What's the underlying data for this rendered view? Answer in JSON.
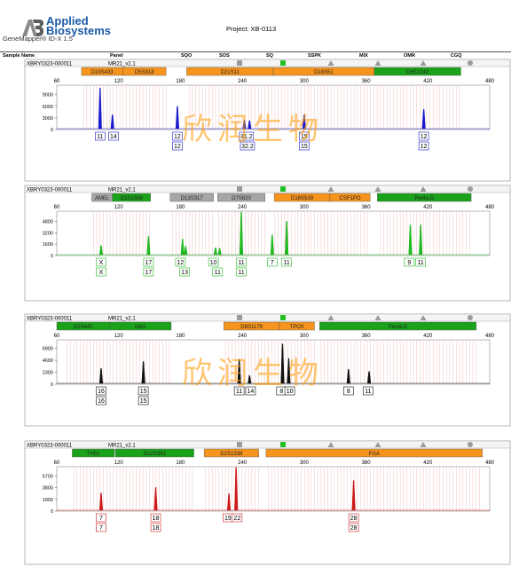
{
  "header": {
    "brand_line1": "Applied",
    "brand_line2": "Biosystems",
    "software": "GeneMapper® ID-X  1.5",
    "project": "Project: XB-0113"
  },
  "columns": [
    "Sample Name",
    "Panel",
    "SQO",
    "SOS",
    "SQ",
    "SSPK",
    "MIX",
    "OMR",
    "CGQ"
  ],
  "watermark": "欣润生物",
  "colors": {
    "blue": "#1a1acc",
    "green": "#1fb81f",
    "black": "#111111",
    "red": "#cc1a1a",
    "marker_orange": "#f7941d",
    "marker_green": "#1aa31a",
    "marker_gray": "#a6a6a6"
  },
  "panels": [
    {
      "sample": "XBRY0323-000011",
      "panel": "MR21_v2.1",
      "dye": "blue",
      "indicators": [
        {
          "shape": "square",
          "color": "gray"
        },
        {
          "shape": "square",
          "color": "green"
        },
        {
          "shape": "triangle",
          "color": "gray"
        },
        {
          "shape": "triangle",
          "color": "gray"
        },
        {
          "shape": "triangle",
          "color": "gray"
        },
        {
          "shape": "circle",
          "color": "gray"
        }
      ],
      "markers": [
        {
          "name": "D19S433",
          "start": 84,
          "end": 124,
          "color": "orange"
        },
        {
          "name": "D5S818",
          "start": 124,
          "end": 166,
          "color": "orange"
        },
        {
          "name": "D21S11",
          "start": 186,
          "end": 270,
          "color": "orange"
        },
        {
          "name": "D18S51",
          "start": 270,
          "end": 368,
          "color": "orange"
        },
        {
          "name": "D6S1043",
          "start": 368,
          "end": 452,
          "color": "green"
        }
      ],
      "x_ticks": [
        60,
        120,
        180,
        240,
        300,
        360,
        420,
        480
      ],
      "y_ticks": [
        0,
        3000,
        6000,
        9000
      ],
      "y_max": 11000,
      "peaks": [
        {
          "x": 102,
          "h": 10500
        },
        {
          "x": 114,
          "h": 3600
        },
        {
          "x": 177,
          "h": 5800
        },
        {
          "x": 242,
          "h": 2200
        },
        {
          "x": 247,
          "h": 2100
        },
        {
          "x": 300,
          "h": 3600
        },
        {
          "x": 416,
          "h": 5000
        }
      ],
      "calls": [
        {
          "x": 102,
          "row": 1,
          "label": "11"
        },
        {
          "x": 115,
          "row": 1,
          "label": "14"
        },
        {
          "x": 177,
          "row": 1,
          "label": "12"
        },
        {
          "x": 177,
          "row": 2,
          "label": "12"
        },
        {
          "x": 244,
          "row": 1,
          "label": "31.2"
        },
        {
          "x": 245,
          "row": 2,
          "label": "32.2"
        },
        {
          "x": 300,
          "row": 1,
          "label": "15"
        },
        {
          "x": 300,
          "row": 2,
          "label": "15"
        },
        {
          "x": 416,
          "row": 1,
          "label": "12"
        },
        {
          "x": 416,
          "row": 2,
          "label": "12"
        }
      ]
    },
    {
      "sample": "XBRY0323-000011",
      "panel": "MR21_v2.1",
      "dye": "green",
      "indicators": [
        {
          "shape": "square",
          "color": "gray"
        },
        {
          "shape": "square",
          "color": "green"
        },
        {
          "shape": "triangle",
          "color": "gray"
        },
        {
          "shape": "triangle",
          "color": "gray"
        },
        {
          "shape": "triangle",
          "color": "gray"
        },
        {
          "shape": "circle",
          "color": "gray"
        }
      ],
      "markers": [
        {
          "name": "AMEL",
          "start": 94,
          "end": 114,
          "color": "gray"
        },
        {
          "name": "D3S1358",
          "start": 114,
          "end": 151,
          "color": "green"
        },
        {
          "name": "D13S317",
          "start": 170,
          "end": 212,
          "color": "gray"
        },
        {
          "name": "D7S820",
          "start": 216,
          "end": 262,
          "color": "gray"
        },
        {
          "name": "D16S539",
          "start": 271,
          "end": 325,
          "color": "orange"
        },
        {
          "name": "CSF1PO",
          "start": 325,
          "end": 364,
          "color": "orange"
        },
        {
          "name": "Penta D",
          "start": 371,
          "end": 462,
          "color": "green"
        }
      ],
      "x_ticks": [
        60,
        120,
        180,
        240,
        300,
        360,
        420,
        480
      ],
      "y_ticks": [
        0,
        1600,
        3200,
        4800
      ],
      "y_max": 6000,
      "peaks": [
        {
          "x": 103,
          "h": 1300
        },
        {
          "x": 149,
          "h": 2600
        },
        {
          "x": 182,
          "h": 2200
        },
        {
          "x": 185,
          "h": 1200
        },
        {
          "x": 214,
          "h": 1000
        },
        {
          "x": 218,
          "h": 900
        },
        {
          "x": 239,
          "h": 6000
        },
        {
          "x": 269,
          "h": 2800
        },
        {
          "x": 283,
          "h": 4700
        },
        {
          "x": 403,
          "h": 4200
        },
        {
          "x": 413,
          "h": 4200
        }
      ],
      "calls": [
        {
          "x": 103,
          "row": 1,
          "label": "X"
        },
        {
          "x": 103,
          "row": 2,
          "label": "X"
        },
        {
          "x": 149,
          "row": 1,
          "label": "17"
        },
        {
          "x": 149,
          "row": 2,
          "label": "17"
        },
        {
          "x": 180,
          "row": 1,
          "label": "12"
        },
        {
          "x": 184,
          "row": 2,
          "label": "13"
        },
        {
          "x": 212,
          "row": 1,
          "label": "10"
        },
        {
          "x": 216,
          "row": 2,
          "label": "11"
        },
        {
          "x": 239,
          "row": 1,
          "label": "11"
        },
        {
          "x": 239,
          "row": 2,
          "label": "11"
        },
        {
          "x": 269,
          "row": 1,
          "label": "7"
        },
        {
          "x": 283,
          "row": 1,
          "label": "11"
        },
        {
          "x": 402,
          "row": 1,
          "label": "9"
        },
        {
          "x": 413,
          "row": 1,
          "label": "11"
        }
      ]
    },
    {
      "sample": "XBRY0323-000011",
      "panel": "MR21_v2.1",
      "dye": "black",
      "indicators": [
        {
          "shape": "square",
          "color": "gray"
        },
        {
          "shape": "square",
          "color": "green"
        },
        {
          "shape": "triangle",
          "color": "gray"
        },
        {
          "shape": "triangle",
          "color": "gray"
        },
        {
          "shape": "triangle",
          "color": "gray"
        },
        {
          "shape": "circle",
          "color": "gray"
        }
      ],
      "markers": [
        {
          "name": "D2S441",
          "start": 60,
          "end": 111,
          "color": "green"
        },
        {
          "name": "vWA",
          "start": 111,
          "end": 171,
          "color": "green"
        },
        {
          "name": "D8S1179",
          "start": 222,
          "end": 276,
          "color": "orange"
        },
        {
          "name": "TPOX",
          "start": 276,
          "end": 310,
          "color": "orange"
        },
        {
          "name": "Penta E",
          "start": 315,
          "end": 467,
          "color": "green"
        }
      ],
      "x_ticks": [
        60,
        120,
        180,
        240,
        300,
        360,
        420,
        480
      ],
      "y_ticks": [
        0,
        2300,
        4600,
        6900
      ],
      "y_max": 8200,
      "peaks": [
        {
          "x": 103,
          "h": 2900
        },
        {
          "x": 144,
          "h": 4200
        },
        {
          "x": 237,
          "h": 4600
        },
        {
          "x": 247,
          "h": 1500
        },
        {
          "x": 279,
          "h": 7600
        },
        {
          "x": 285,
          "h": 4800
        },
        {
          "x": 343,
          "h": 2700
        },
        {
          "x": 363,
          "h": 2300
        }
      ],
      "calls": [
        {
          "x": 103,
          "row": 1,
          "label": "16"
        },
        {
          "x": 103,
          "row": 2,
          "label": "16"
        },
        {
          "x": 144,
          "row": 1,
          "label": "15"
        },
        {
          "x": 144,
          "row": 2,
          "label": "15"
        },
        {
          "x": 237,
          "row": 1,
          "label": "11"
        },
        {
          "x": 248,
          "row": 1,
          "label": "14"
        },
        {
          "x": 278,
          "row": 1,
          "label": "8"
        },
        {
          "x": 286,
          "row": 1,
          "label": "10"
        },
        {
          "x": 343,
          "row": 1,
          "label": "8"
        },
        {
          "x": 362,
          "row": 1,
          "label": "11"
        }
      ]
    },
    {
      "sample": "XBRY0323-000011",
      "panel": "MR21_v2.1",
      "dye": "red",
      "indicators": [
        {
          "shape": "square",
          "color": "gray"
        },
        {
          "shape": "square",
          "color": "green"
        },
        {
          "shape": "triangle",
          "color": "gray"
        },
        {
          "shape": "triangle",
          "color": "gray"
        },
        {
          "shape": "triangle",
          "color": "gray"
        },
        {
          "shape": "circle",
          "color": "gray"
        }
      ],
      "markers": [
        {
          "name": "TH01",
          "start": 75,
          "end": 116,
          "color": "green"
        },
        {
          "name": "D12S391",
          "start": 117,
          "end": 193,
          "color": "green"
        },
        {
          "name": "D2S1338",
          "start": 203,
          "end": 256,
          "color": "orange"
        },
        {
          "name": "FGA",
          "start": 263,
          "end": 473,
          "color": "orange"
        }
      ],
      "x_ticks": [
        60,
        120,
        180,
        240,
        300,
        360,
        420,
        480
      ],
      "y_ticks": [
        0,
        1900,
        3800,
        5700
      ],
      "y_max": 6900,
      "peaks": [
        {
          "x": 103,
          "h": 2800
        },
        {
          "x": 156,
          "h": 3700
        },
        {
          "x": 227,
          "h": 2700
        },
        {
          "x": 234,
          "h": 6900
        },
        {
          "x": 348,
          "h": 4800
        }
      ],
      "calls": [
        {
          "x": 103,
          "row": 1,
          "label": "7"
        },
        {
          "x": 103,
          "row": 2,
          "label": "7"
        },
        {
          "x": 156,
          "row": 1,
          "label": "18"
        },
        {
          "x": 156,
          "row": 2,
          "label": "18"
        },
        {
          "x": 226,
          "row": 1,
          "label": "19"
        },
        {
          "x": 235,
          "row": 1,
          "label": "22"
        },
        {
          "x": 348,
          "row": 1,
          "label": "28"
        },
        {
          "x": 348,
          "row": 2,
          "label": "28"
        }
      ]
    }
  ]
}
